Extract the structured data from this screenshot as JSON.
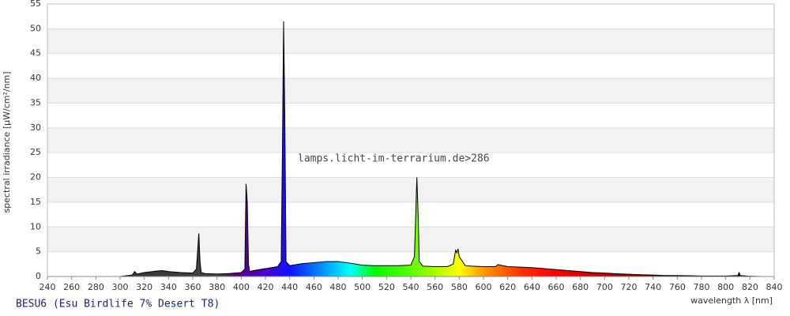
{
  "chart_data": {
    "type": "area",
    "title": "BESU6 (Esu Birdlife 7% Desert T8)",
    "annotation": "lamps.licht-im-terrarium.de>286",
    "x_label": "wavelength λ [nm]",
    "y_label": "spectral irradiance [µW/cm²/nm]",
    "x": [
      250,
      300,
      310,
      312,
      314,
      320,
      330,
      335,
      340,
      350,
      360,
      363,
      365,
      366,
      367,
      370,
      380,
      390,
      400,
      403,
      404,
      405,
      406,
      407,
      410,
      420,
      430,
      433,
      434,
      435,
      436,
      437,
      440,
      450,
      460,
      470,
      480,
      490,
      500,
      510,
      520,
      530,
      540,
      543,
      545,
      546,
      547,
      550,
      560,
      570,
      575,
      577,
      578,
      579,
      580,
      585,
      590,
      600,
      610,
      612,
      620,
      630,
      640,
      650,
      660,
      670,
      680,
      690,
      700,
      710,
      720,
      730,
      740,
      750,
      760,
      770,
      780,
      790,
      800,
      810,
      811,
      812,
      820,
      830
    ],
    "values": [
      0,
      0,
      0.3,
      1.0,
      0.5,
      0.8,
      1.1,
      1.2,
      1.0,
      0.8,
      0.7,
      1.5,
      8.7,
      3,
      0.8,
      0.6,
      0.5,
      0.6,
      0.8,
      1.5,
      18.7,
      15,
      2.5,
      1.0,
      1.2,
      1.6,
      2.0,
      3,
      25,
      51.5,
      32,
      3,
      2.2,
      2.6,
      2.8,
      3.0,
      3.0,
      2.7,
      2.3,
      2.2,
      2.2,
      2.2,
      2.3,
      4,
      20,
      13,
      3,
      2.1,
      2.0,
      2.0,
      2.5,
      5.3,
      4.8,
      5.6,
      4,
      2.2,
      2.1,
      2.0,
      2.0,
      2.4,
      2.0,
      1.9,
      1.8,
      1.6,
      1.4,
      1.2,
      1.0,
      0.8,
      0.7,
      0.55,
      0.45,
      0.35,
      0.3,
      0.2,
      0.2,
      0.15,
      0.1,
      0.1,
      0.1,
      0.2,
      0.8,
      0.2,
      0.05,
      0
    ],
    "xlim": [
      240,
      840
    ],
    "ylim": [
      0,
      55
    ],
    "xticks": [
      240,
      260,
      280,
      300,
      320,
      340,
      360,
      380,
      400,
      420,
      440,
      460,
      480,
      500,
      520,
      540,
      560,
      580,
      600,
      620,
      640,
      660,
      680,
      700,
      720,
      740,
      760,
      780,
      800,
      820,
      840
    ],
    "yticks": [
      0,
      5,
      10,
      15,
      20,
      25,
      30,
      35,
      40,
      45,
      50,
      55
    ],
    "grid": true
  }
}
